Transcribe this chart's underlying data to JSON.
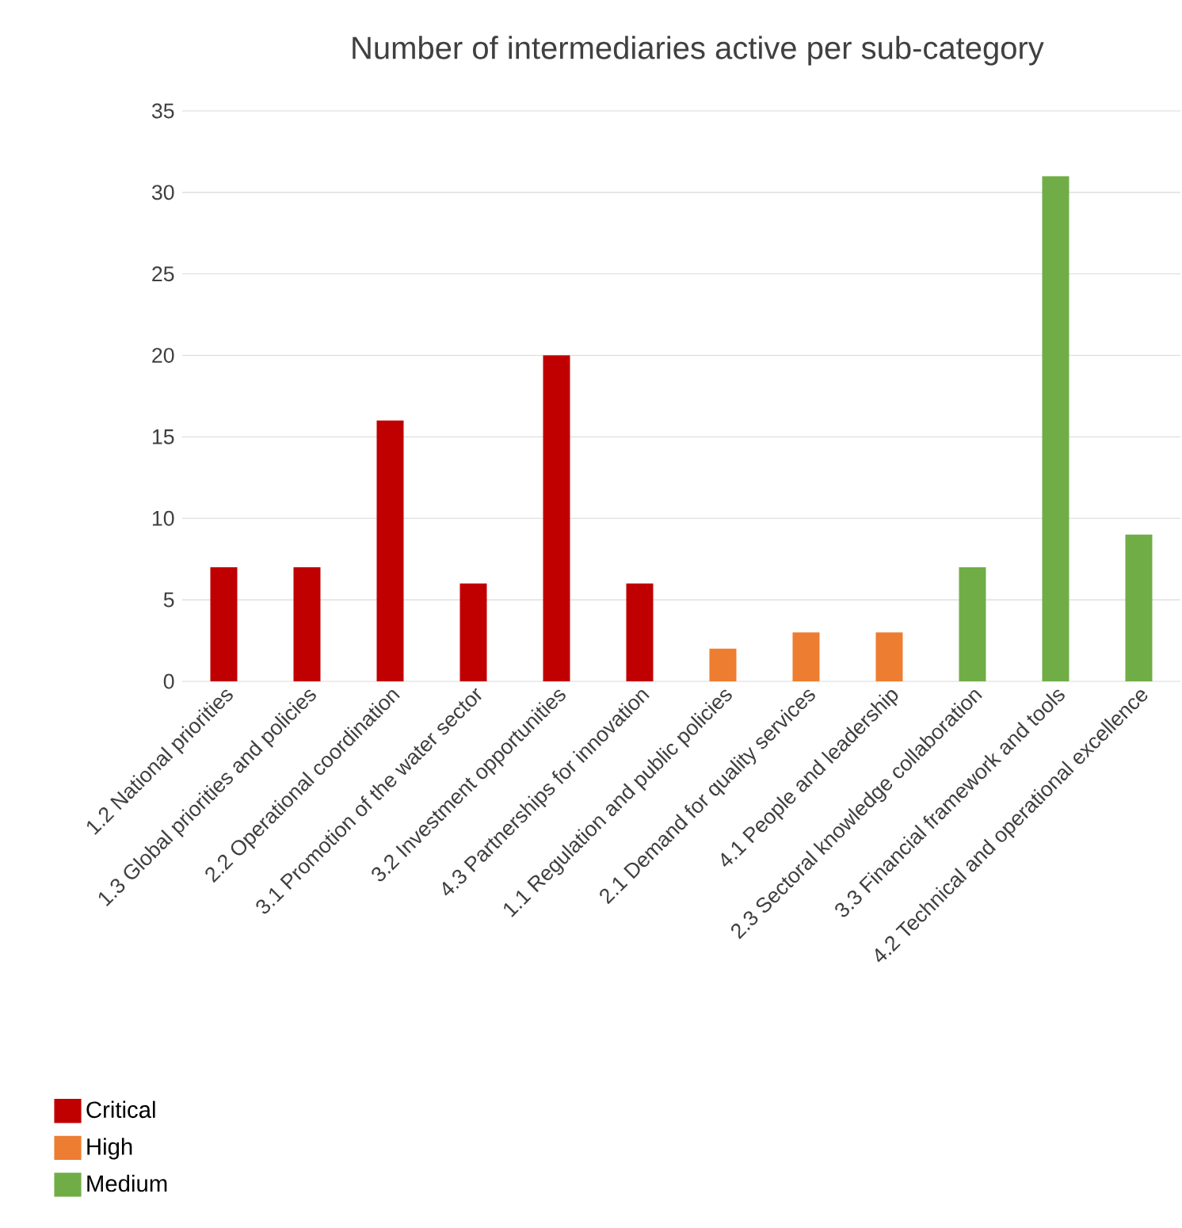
{
  "chart_data": {
    "type": "bar",
    "title": "Number of intermediaries active per sub-category",
    "categories": [
      "1.2 National priorities",
      "1.3 Global priorities and policies",
      "2.2 Operational coordination",
      "3.1 Promotion of the water sector",
      "3.2 Investment opportunities",
      "4.3 Partnerships for innovation",
      "1.1 Regulation and public policies",
      "2.1 Demand for quality services",
      "4.1 People and leadership",
      "2.3 Sectoral knowledge collaboration",
      "3.3 Financial framework and tools",
      "4.2 Technical and operational excellence"
    ],
    "series": [
      {
        "name": "Critical",
        "color": "#c00000",
        "values": [
          7,
          7,
          16,
          6,
          20,
          6,
          null,
          null,
          null,
          null,
          null,
          null
        ]
      },
      {
        "name": "High",
        "color": "#ed7d31",
        "values": [
          null,
          null,
          null,
          null,
          null,
          null,
          2,
          3,
          3,
          null,
          null,
          null
        ]
      },
      {
        "name": "Medium",
        "color": "#70ad47",
        "values": [
          null,
          null,
          null,
          null,
          null,
          null,
          null,
          null,
          null,
          7,
          31,
          9
        ]
      }
    ],
    "ylim": [
      0,
      35
    ],
    "yticks": [
      0,
      5,
      10,
      15,
      20,
      25,
      30,
      35
    ],
    "grid": "y",
    "legend": "bottom left"
  }
}
